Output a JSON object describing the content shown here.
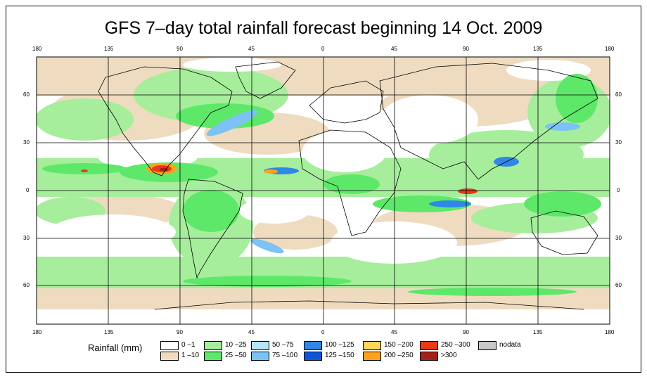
{
  "title": "GFS 7–day total rainfall forecast beginning 14 Oct. 2009",
  "axes": {
    "lon_ticks": [
      "180",
      "135",
      "90",
      "45",
      "0",
      "45",
      "90",
      "135",
      "180"
    ],
    "lat_ticks": [
      "60",
      "30",
      "0",
      "30",
      "60"
    ]
  },
  "legend": {
    "title": "Rainfall (mm)",
    "items": [
      {
        "label": "0 –1",
        "color": "#ffffff"
      },
      {
        "label": "1 –10",
        "color": "#efdcc0"
      },
      {
        "label": "10 –25",
        "color": "#a6ee9c"
      },
      {
        "label": "25 –50",
        "color": "#5ee86a"
      },
      {
        "label": "50 –75",
        "color": "#b5e6f5"
      },
      {
        "label": "75 –100",
        "color": "#7cc2f5"
      },
      {
        "label": "100 –125",
        "color": "#2f87e8"
      },
      {
        "label": "125 –150",
        "color": "#0f55d8"
      },
      {
        "label": "150 –200",
        "color": "#ffd65a"
      },
      {
        "label": "200 –250",
        "color": "#ffa31a"
      },
      {
        "label": "250 –300",
        "color": "#e83a14"
      },
      {
        "label": ">300",
        "color": "#a5201a"
      },
      {
        "label": "nodata",
        "color": "#c8c8c8"
      }
    ]
  },
  "colors": {
    "ocean_dry": "#ffffff",
    "land_line": "#000000"
  }
}
